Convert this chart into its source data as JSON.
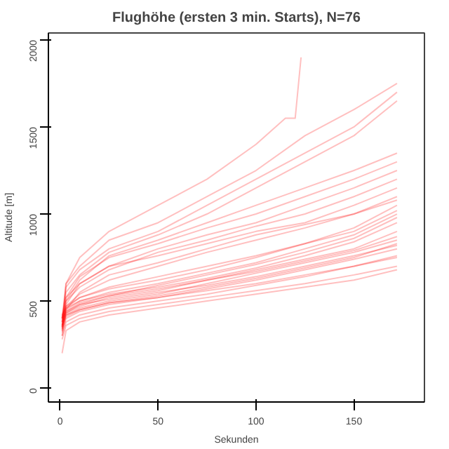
{
  "chart_data": {
    "type": "line",
    "title": "Flughöhe (ersten 3 min. Starts), N=76",
    "xlabel": "Sekunden",
    "ylabel": "Altitude [m]",
    "x": [
      1,
      3,
      10,
      25,
      50,
      75,
      100,
      125,
      150,
      172
    ],
    "xlim": [
      -6,
      186
    ],
    "ylim": [
      -80,
      2040
    ],
    "xticks": [
      0,
      50,
      100,
      150
    ],
    "yticks": [
      0,
      500,
      1000,
      1500,
      2000
    ],
    "grid": false,
    "marker": "none",
    "line_style": "solid",
    "series": [
      {
        "color": "#ff0000",
        "values": [
          350,
          600,
          700,
          850,
          950,
          1100,
          1250,
          1450,
          1600,
          1750
        ]
      },
      {
        "color": "#ff0000",
        "values": [
          380,
          580,
          680,
          800,
          900,
          1050,
          1200,
          1350,
          1500,
          1700
        ]
      },
      {
        "color": "#ff0000",
        "values": [
          400,
          550,
          650,
          780,
          880,
          1000,
          1150,
          1300,
          1450,
          1650
        ]
      },
      {
        "color": "#ff0000",
        "values": [
          350,
          500,
          620,
          760,
          850,
          950,
          1050,
          1150,
          1250,
          1350
        ]
      },
      {
        "color": "#ff0000",
        "values": [
          400,
          520,
          640,
          750,
          830,
          920,
          1000,
          1100,
          1200,
          1300
        ]
      },
      {
        "color": "#ff0000",
        "values": [
          330,
          480,
          600,
          700,
          800,
          880,
          950,
          1050,
          1150,
          1250
        ]
      },
      {
        "color": "#ff0000",
        "values": [
          360,
          500,
          580,
          680,
          780,
          850,
          930,
          1000,
          1100,
          1200
        ]
      },
      {
        "color": "#ff0000",
        "values": [
          380,
          520,
          600,
          700,
          760,
          830,
          900,
          950,
          1050,
          1150
        ]
      },
      {
        "color": "#ff0000",
        "values": [
          300,
          450,
          550,
          650,
          720,
          800,
          880,
          940,
          1000,
          1100
        ]
      },
      {
        "color": "#ff0000",
        "values": [
          340,
          470,
          540,
          620,
          700,
          780,
          850,
          920,
          1000,
          1080
        ]
      },
      {
        "color": "#ff0000",
        "x": [
          1,
          3,
          10,
          25,
          50,
          75,
          100,
          115,
          120,
          123
        ],
        "values": [
          400,
          600,
          750,
          900,
          1050,
          1200,
          1400,
          1550,
          1550,
          1900
        ]
      },
      {
        "color": "#ff0000",
        "values": [
          380,
          430,
          470,
          520,
          560,
          620,
          680,
          740,
          800,
          900
        ]
      },
      {
        "color": "#ff0000",
        "values": [
          350,
          420,
          460,
          500,
          540,
          600,
          660,
          720,
          780,
          850
        ]
      },
      {
        "color": "#ff0000",
        "values": [
          400,
          440,
          480,
          510,
          550,
          590,
          640,
          700,
          760,
          820
        ]
      },
      {
        "color": "#ff0000",
        "values": [
          320,
          400,
          440,
          480,
          520,
          570,
          620,
          680,
          740,
          800
        ]
      },
      {
        "color": "#ff0000",
        "values": [
          300,
          380,
          420,
          460,
          500,
          540,
          590,
          640,
          700,
          760
        ]
      },
      {
        "color": "#ff0000",
        "values": [
          360,
          420,
          450,
          490,
          520,
          560,
          600,
          650,
          700,
          750
        ]
      },
      {
        "color": "#ff0000",
        "values": [
          280,
          360,
          400,
          440,
          480,
          520,
          560,
          600,
          650,
          700
        ]
      },
      {
        "color": "#ff0000",
        "values": [
          420,
          460,
          500,
          540,
          580,
          630,
          690,
          760,
          840,
          950
        ]
      },
      {
        "color": "#ff0000",
        "values": [
          390,
          450,
          500,
          550,
          600,
          660,
          720,
          800,
          880,
          1000
        ]
      },
      {
        "color": "#ff0000",
        "values": [
          340,
          430,
          480,
          530,
          590,
          650,
          710,
          780,
          860,
          980
        ]
      },
      {
        "color": "#ff0000",
        "values": [
          200,
          330,
          380,
          420,
          460,
          500,
          540,
          580,
          620,
          680
        ]
      },
      {
        "color": "#ff0000",
        "values": [
          370,
          460,
          520,
          580,
          640,
          700,
          760,
          830,
          920,
          1050
        ]
      },
      {
        "color": "#ff0000",
        "values": [
          410,
          470,
          520,
          570,
          620,
          680,
          750,
          830,
          900,
          1020
        ]
      },
      {
        "color": "#ff0000",
        "values": [
          330,
          410,
          450,
          490,
          530,
          580,
          630,
          690,
          750,
          830
        ]
      },
      {
        "color": "#ff0000",
        "values": [
          360,
          440,
          490,
          530,
          570,
          620,
          670,
          730,
          790,
          870
        ]
      }
    ]
  }
}
